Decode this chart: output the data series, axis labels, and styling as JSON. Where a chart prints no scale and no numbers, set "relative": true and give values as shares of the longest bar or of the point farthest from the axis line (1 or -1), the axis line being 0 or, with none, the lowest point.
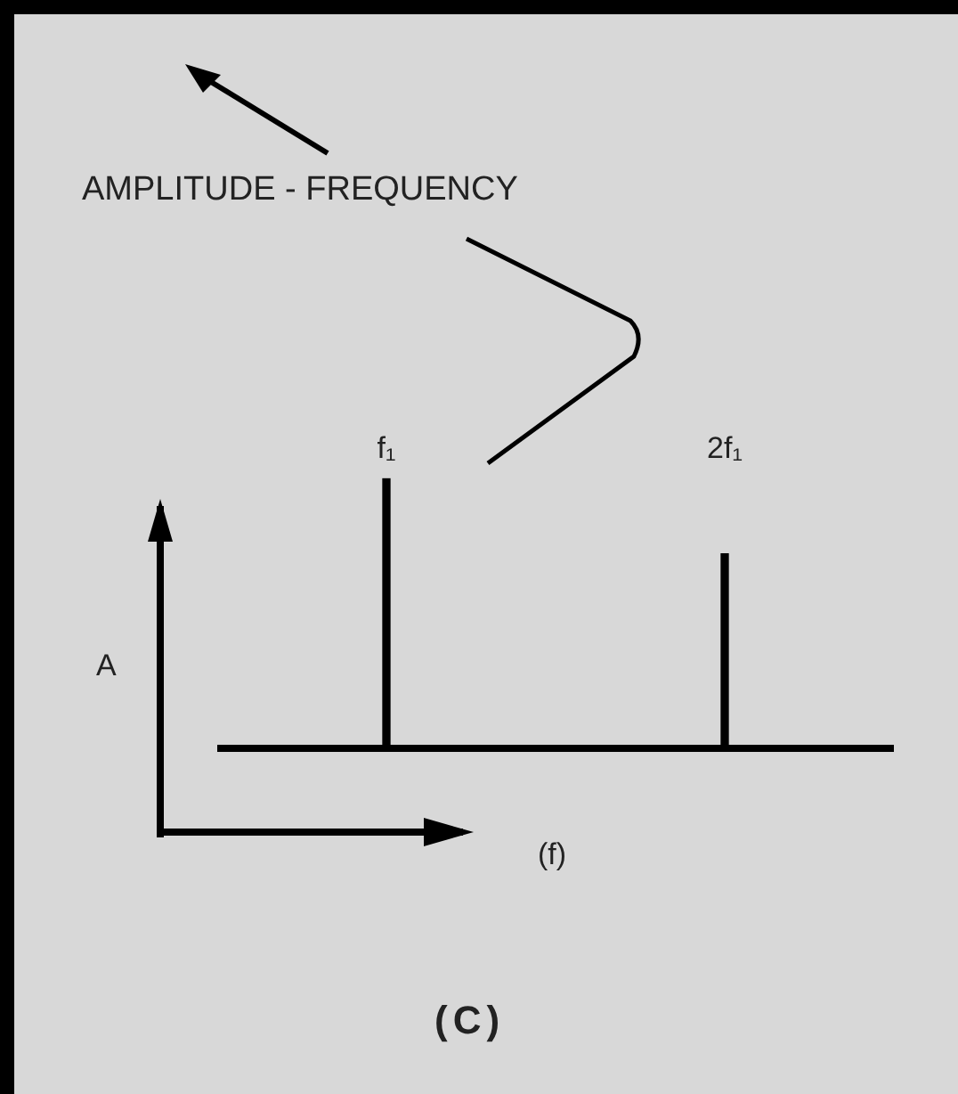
{
  "chart_data": {
    "type": "bar",
    "title": "AMPLITUDE - FREQUENCY",
    "xlabel": "(f)",
    "ylabel": "A",
    "categories": [
      "f₁",
      "2f₁"
    ],
    "values": [
      1,
      0.72
    ],
    "color": "#000000",
    "relative": true,
    "annotations": [
      "(C)"
    ]
  }
}
